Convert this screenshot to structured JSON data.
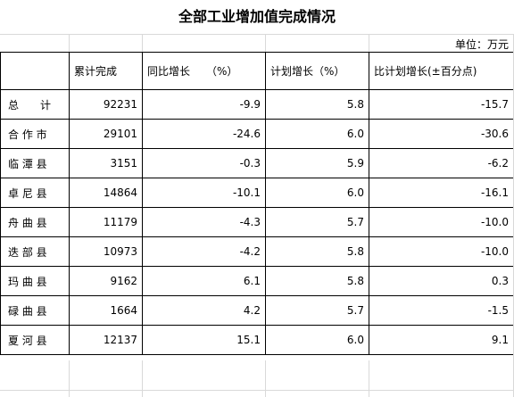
{
  "title": "全部工业增加值完成情况",
  "unit": "单位：万元",
  "headers": [
    "",
    "累计完成",
    "同比增长　　（%）",
    "计划增长（%）",
    "比计划增长(±百分点)"
  ],
  "rows": [
    {
      "name": "总　　计",
      "cum": "92231",
      "yoy": "-9.9",
      "plan": "5.8",
      "diff": "-15.7"
    },
    {
      "name": "合 作 市",
      "cum": "29101",
      "yoy": "-24.6",
      "plan": "6.0",
      "diff": "-30.6"
    },
    {
      "name": "临 潭 县",
      "cum": "3151",
      "yoy": "-0.3",
      "plan": "5.9",
      "diff": "-6.2"
    },
    {
      "name": "卓 尼 县",
      "cum": "14864",
      "yoy": "-10.1",
      "plan": "6.0",
      "diff": "-16.1"
    },
    {
      "name": "舟 曲 县",
      "cum": "11179",
      "yoy": "-4.3",
      "plan": "5.7",
      "diff": "-10.0"
    },
    {
      "name": "迭 部 县",
      "cum": "10973",
      "yoy": "-4.2",
      "plan": "5.8",
      "diff": "-10.0"
    },
    {
      "name": "玛 曲 县",
      "cum": "9162",
      "yoy": "6.1",
      "plan": "5.8",
      "diff": "0.3"
    },
    {
      "name": "碌 曲 县",
      "cum": "1664",
      "yoy": "4.2",
      "plan": "5.7",
      "diff": "-1.5"
    },
    {
      "name": "夏 河 县",
      "cum": "12137",
      "yoy": "15.1",
      "plan": "6.0",
      "diff": "9.1"
    }
  ]
}
